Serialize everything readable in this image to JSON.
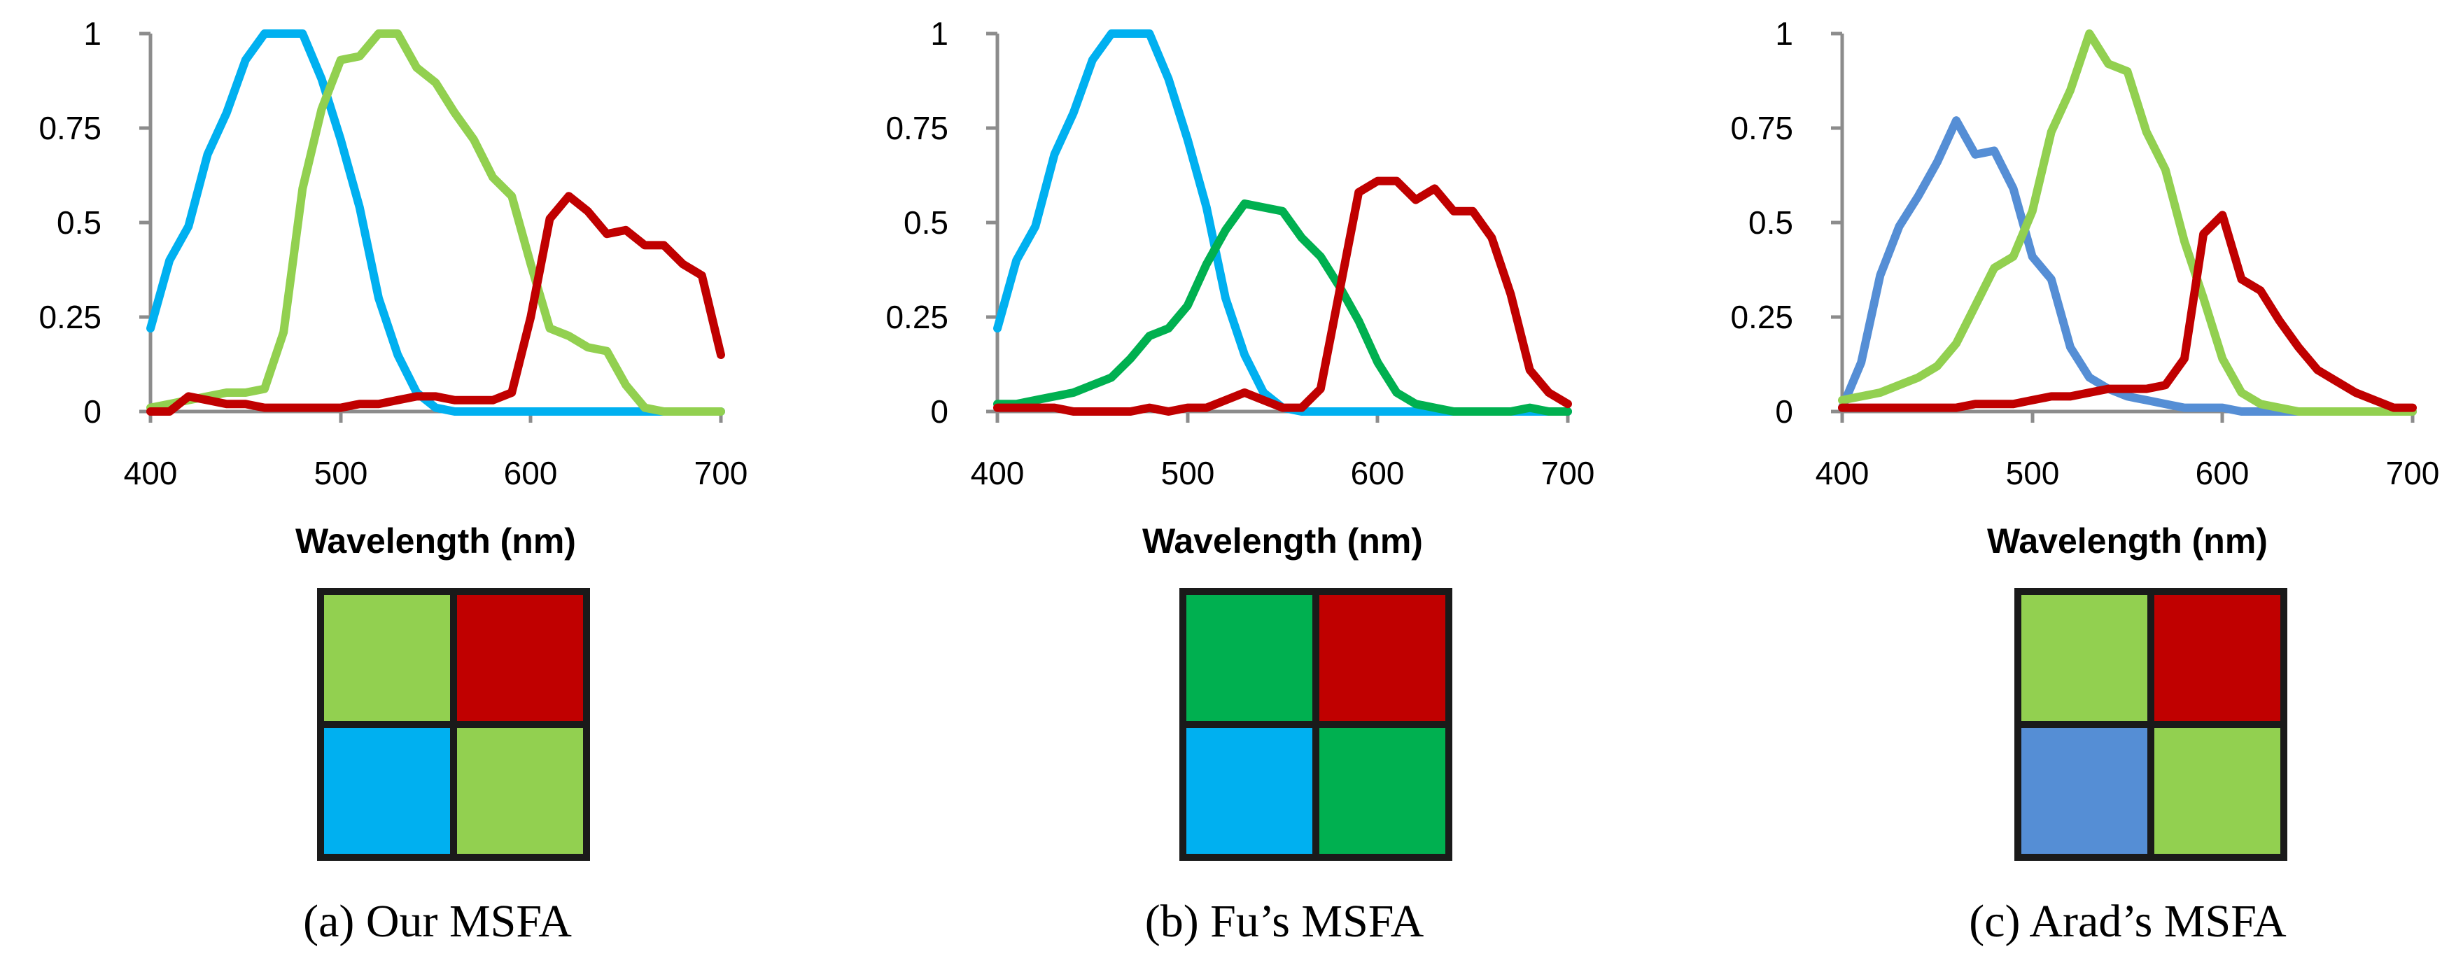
{
  "chart_data": [
    {
      "type": "line",
      "title": "",
      "xlabel": "Wavelength  (nm)",
      "ylabel": "",
      "xlim": [
        400,
        700
      ],
      "ylim": [
        0,
        1
      ],
      "xticks": [
        "400",
        "500",
        "600",
        "700"
      ],
      "yticks": [
        "0",
        "0.25",
        "0.5",
        "0.75",
        "1"
      ],
      "x": [
        400,
        410,
        420,
        430,
        440,
        450,
        460,
        470,
        480,
        490,
        500,
        510,
        520,
        530,
        540,
        550,
        560,
        570,
        580,
        590,
        600,
        610,
        620,
        630,
        640,
        650,
        660,
        670,
        680,
        690,
        700
      ],
      "series": [
        {
          "name": "blue",
          "color": "#00b0f0",
          "values": [
            0.22,
            0.4,
            0.49,
            0.68,
            0.79,
            0.93,
            1.0,
            1.0,
            1.0,
            0.88,
            0.72,
            0.54,
            0.3,
            0.15,
            0.05,
            0.01,
            0.0,
            0.0,
            0.0,
            0.0,
            0.0,
            0.0,
            0.0,
            0.0,
            0.0,
            0.0,
            0.0,
            0.0,
            0.0,
            0.0,
            0.0
          ]
        },
        {
          "name": "green",
          "color": "#92d050",
          "values": [
            0.01,
            0.02,
            0.03,
            0.04,
            0.05,
            0.05,
            0.06,
            0.21,
            0.59,
            0.8,
            0.93,
            0.94,
            1.0,
            1.0,
            0.91,
            0.87,
            0.79,
            0.72,
            0.62,
            0.57,
            0.39,
            0.22,
            0.2,
            0.17,
            0.16,
            0.07,
            0.01,
            0.0,
            0.0,
            0.0,
            0.0
          ]
        },
        {
          "name": "red",
          "color": "#c00000",
          "values": [
            0.0,
            0.0,
            0.04,
            0.03,
            0.02,
            0.02,
            0.01,
            0.01,
            0.01,
            0.01,
            0.01,
            0.02,
            0.02,
            0.03,
            0.04,
            0.04,
            0.03,
            0.03,
            0.03,
            0.05,
            0.25,
            0.51,
            0.57,
            0.53,
            0.47,
            0.48,
            0.44,
            0.44,
            0.39,
            0.36,
            0.15
          ]
        }
      ],
      "mosaic": [
        "#92d050",
        "#c00000",
        "#00b0f0",
        "#92d050"
      ],
      "caption": "(a)  Our MSFA"
    },
    {
      "type": "line",
      "title": "",
      "xlabel": "Wavelength  (nm)",
      "ylabel": "",
      "xlim": [
        400,
        700
      ],
      "ylim": [
        0,
        1
      ],
      "xticks": [
        "400",
        "500",
        "600",
        "700"
      ],
      "yticks": [
        "0",
        "0.25",
        "0.5",
        "0.75",
        "1"
      ],
      "x": [
        400,
        410,
        420,
        430,
        440,
        450,
        460,
        470,
        480,
        490,
        500,
        510,
        520,
        530,
        540,
        550,
        560,
        570,
        580,
        590,
        600,
        610,
        620,
        630,
        640,
        650,
        660,
        670,
        680,
        690,
        700
      ],
      "series": [
        {
          "name": "blue",
          "color": "#00b0f0",
          "values": [
            0.22,
            0.4,
            0.49,
            0.68,
            0.79,
            0.93,
            1.0,
            1.0,
            1.0,
            0.88,
            0.72,
            0.54,
            0.3,
            0.15,
            0.05,
            0.01,
            0.0,
            0.0,
            0.0,
            0.0,
            0.0,
            0.0,
            0.0,
            0.0,
            0.0,
            0.0,
            0.0,
            0.0,
            0.0,
            0.0,
            0.0
          ]
        },
        {
          "name": "green",
          "color": "#00b050",
          "values": [
            0.02,
            0.02,
            0.03,
            0.04,
            0.05,
            0.07,
            0.09,
            0.14,
            0.2,
            0.22,
            0.28,
            0.39,
            0.48,
            0.55,
            0.54,
            0.53,
            0.46,
            0.41,
            0.33,
            0.24,
            0.13,
            0.05,
            0.02,
            0.01,
            0.0,
            0.0,
            0.0,
            0.0,
            0.01,
            0.0,
            0.0
          ]
        },
        {
          "name": "red",
          "color": "#c00000",
          "values": [
            0.01,
            0.01,
            0.01,
            0.01,
            0.0,
            0.0,
            0.0,
            0.0,
            0.01,
            0.0,
            0.01,
            0.01,
            0.03,
            0.05,
            0.03,
            0.01,
            0.01,
            0.06,
            0.32,
            0.58,
            0.61,
            0.61,
            0.56,
            0.59,
            0.53,
            0.53,
            0.46,
            0.31,
            0.11,
            0.05,
            0.02
          ]
        }
      ],
      "mosaic": [
        "#00b050",
        "#c00000",
        "#00b0f0",
        "#00b050"
      ],
      "caption": "(b)  Fu’s MSFA"
    },
    {
      "type": "line",
      "title": "",
      "xlabel": "Wavelength  (nm)",
      "ylabel": "",
      "xlim": [
        400,
        700
      ],
      "ylim": [
        0,
        1
      ],
      "xticks": [
        "400",
        "500",
        "600",
        "700"
      ],
      "yticks": [
        "0",
        "0.25",
        "0.5",
        "0.75",
        "1"
      ],
      "x": [
        400,
        410,
        420,
        430,
        440,
        450,
        460,
        470,
        480,
        490,
        500,
        510,
        520,
        530,
        540,
        550,
        560,
        570,
        580,
        590,
        600,
        610,
        620,
        630,
        640,
        650,
        660,
        670,
        680,
        690,
        700
      ],
      "series": [
        {
          "name": "blue",
          "color": "#558ed5",
          "values": [
            0.01,
            0.13,
            0.36,
            0.49,
            0.57,
            0.66,
            0.77,
            0.68,
            0.69,
            0.59,
            0.41,
            0.35,
            0.17,
            0.09,
            0.06,
            0.04,
            0.03,
            0.02,
            0.01,
            0.01,
            0.01,
            0.0,
            0.0,
            0.0,
            0.0,
            0.0,
            0.0,
            0.0,
            0.0,
            0.0,
            0.0
          ]
        },
        {
          "name": "green",
          "color": "#92d050",
          "values": [
            0.03,
            0.04,
            0.05,
            0.07,
            0.09,
            0.12,
            0.18,
            0.28,
            0.38,
            0.41,
            0.53,
            0.74,
            0.85,
            1.0,
            0.92,
            0.9,
            0.74,
            0.64,
            0.45,
            0.3,
            0.14,
            0.05,
            0.02,
            0.01,
            0.0,
            0.0,
            0.0,
            0.0,
            0.0,
            0.0,
            0.0
          ]
        },
        {
          "name": "red",
          "color": "#c00000",
          "values": [
            0.01,
            0.01,
            0.01,
            0.01,
            0.01,
            0.01,
            0.01,
            0.02,
            0.02,
            0.02,
            0.03,
            0.04,
            0.04,
            0.05,
            0.06,
            0.06,
            0.06,
            0.07,
            0.14,
            0.47,
            0.52,
            0.35,
            0.32,
            0.24,
            0.17,
            0.11,
            0.08,
            0.05,
            0.03,
            0.01,
            0.01
          ]
        }
      ],
      "mosaic": [
        "#92d050",
        "#c00000",
        "#558ed5",
        "#92d050"
      ],
      "caption": "(c)  Arad’s MSFA"
    }
  ]
}
